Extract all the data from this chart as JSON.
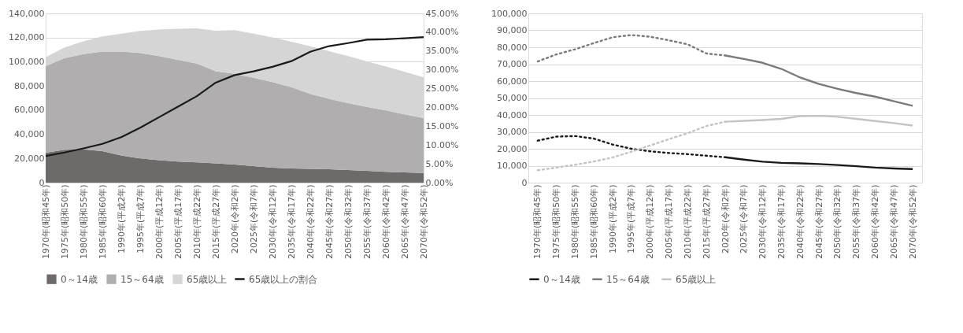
{
  "chart_data": [
    {
      "type": "area",
      "stacked": true,
      "categories": [
        "1970年(昭和45年)",
        "1975年(昭和50年)",
        "1980年(昭和55年)",
        "1985年(昭和60年)",
        "1990年(平成2年)",
        "1995年(平成7年)",
        "2000年(平成12年)",
        "2005年(平成17年)",
        "2010年(平成22年)",
        "2015年(平成27年)",
        "2020年(令和2年)",
        "2025年(令和7年)",
        "2030年(令和12年)",
        "2035年(令和17年)",
        "2040年(令和22年)",
        "2045年(令和27年)",
        "2050年(令和32年)",
        "2055年(令和37年)",
        "2060年(令和42年)",
        "2065年(令和47年)",
        "2070年(令和52年)"
      ],
      "series": [
        {
          "name": "0～14歳",
          "type": "area",
          "color": "#6f6a6a",
          "values": [
            24800,
            27200,
            27500,
            26000,
            22500,
            20000,
            18500,
            17500,
            16800,
            15900,
            15000,
            13600,
            12400,
            11700,
            11400,
            11000,
            10400,
            9700,
            8900,
            8400,
            8000
          ]
        },
        {
          "name": "15～64歳",
          "type": "area",
          "color": "#b0aeae",
          "values": [
            71600,
            75800,
            78800,
            82500,
            85900,
            87200,
            86200,
            84100,
            81700,
            76300,
            75100,
            73100,
            70800,
            67200,
            62100,
            58300,
            55400,
            52900,
            50800,
            48100,
            45400
          ]
        },
        {
          "name": "65歳以上",
          "type": "area",
          "color": "#d6d5d5",
          "values": [
            7300,
            8900,
            10600,
            12500,
            14900,
            18300,
            22000,
            25700,
            29200,
            33500,
            36000,
            36500,
            37000,
            37700,
            39300,
            39500,
            38900,
            37700,
            36400,
            35200,
            33700
          ]
        },
        {
          "name": "65歳以上の割合",
          "type": "line",
          "axis": "y2",
          "color": "#1a1a1a",
          "values": [
            7.1,
            8.0,
            9.1,
            10.3,
            12.1,
            14.6,
            17.4,
            20.2,
            23.0,
            26.6,
            28.6,
            29.6,
            30.8,
            32.3,
            34.8,
            36.3,
            37.1,
            38.0,
            38.1,
            38.4,
            38.7
          ]
        }
      ],
      "ylim": [
        0,
        140000
      ],
      "yticks": [
        0,
        {
          "value": 20000,
          "label": "20,000"
        },
        {
          "value": 40000,
          "label": "40,000"
        },
        {
          "value": 60000,
          "label": "60,000"
        },
        {
          "value": 80000,
          "label": "80,000"
        },
        {
          "value": 100000,
          "label": "100,000"
        },
        {
          "value": 120000,
          "label": "120,000"
        },
        {
          "value": 140000,
          "label": "140,000"
        }
      ],
      "y2lim": [
        0,
        45
      ],
      "y2ticks": [
        {
          "value": 0,
          "label": "0.00%"
        },
        {
          "value": 5,
          "label": "5.00%"
        },
        {
          "value": 10,
          "label": "10.00%"
        },
        {
          "value": 15,
          "label": "15.00%"
        },
        {
          "value": 20,
          "label": "20.00%"
        },
        {
          "value": 25,
          "label": "25.00%"
        },
        {
          "value": 30,
          "label": "30.00%"
        },
        {
          "value": 35,
          "label": "35.00%"
        },
        {
          "value": 40,
          "label": "40.00%"
        },
        {
          "value": 45,
          "label": "45.00%"
        }
      ],
      "grid": "y",
      "legend": "bottom"
    },
    {
      "type": "line",
      "categories": [
        "1970年(昭和45年)",
        "1975年(昭和50年)",
        "1980年(昭和55年)",
        "1985年(昭和60年)",
        "1990年(平成2年)",
        "1995年(平成7年)",
        "2000年(平成12年)",
        "2005年(平成17年)",
        "2010年(平成22年)",
        "2015年(平成27年)",
        "2020年(令和2年)",
        "2025年(令和7年)",
        "2030年(令和12年)",
        "2035年(令和17年)",
        "2040年(令和22年)",
        "2045年(令和27年)",
        "2050年(令和32年)",
        "2055年(令和37年)",
        "2060年(令和42年)",
        "2065年(令和47年)",
        "2070年(令和52年)"
      ],
      "series": [
        {
          "color": "#1a1a1a",
          "line_style": "dotted",
          "values": [
            24800,
            27200,
            27500,
            26000,
            22500,
            20000,
            18500,
            17500,
            16800,
            15900,
            15000,
            null,
            null,
            null,
            null,
            null,
            null,
            null,
            null,
            null,
            null
          ]
        },
        {
          "color": "#7a7a7a",
          "line_style": "dotted",
          "values": [
            71600,
            75800,
            78800,
            82500,
            85900,
            87200,
            86200,
            84100,
            81700,
            76300,
            75100,
            null,
            null,
            null,
            null,
            null,
            null,
            null,
            null,
            null,
            null
          ]
        },
        {
          "color": "#c4c4c4",
          "line_style": "dotted",
          "values": [
            7300,
            8900,
            10600,
            12500,
            14900,
            18300,
            22000,
            25700,
            29200,
            33500,
            36000,
            null,
            null,
            null,
            null,
            null,
            null,
            null,
            null,
            null,
            null
          ]
        },
        {
          "name": "0～14歳",
          "color": "#1a1a1a",
          "line_style": "solid",
          "values": [
            null,
            null,
            null,
            null,
            null,
            null,
            null,
            null,
            null,
            null,
            15000,
            13600,
            12400,
            11700,
            11400,
            11000,
            10400,
            9700,
            8900,
            8400,
            8000
          ]
        },
        {
          "name": "15～64歳",
          "color": "#7a7a7a",
          "line_style": "solid",
          "values": [
            null,
            null,
            null,
            null,
            null,
            null,
            null,
            null,
            null,
            null,
            75100,
            73100,
            70800,
            67200,
            62100,
            58300,
            55400,
            52900,
            50800,
            48100,
            45400
          ]
        },
        {
          "name": "65歳以上",
          "color": "#c4c4c4",
          "line_style": "solid",
          "values": [
            null,
            null,
            null,
            null,
            null,
            null,
            null,
            null,
            null,
            null,
            36000,
            36500,
            37000,
            37700,
            39300,
            39500,
            38900,
            37700,
            36400,
            35200,
            33700
          ]
        }
      ],
      "ylim": [
        0,
        100000
      ],
      "yticks": [
        0,
        {
          "value": 10000,
          "label": "10,000"
        },
        {
          "value": 20000,
          "label": "20,000"
        },
        {
          "value": 30000,
          "label": "30,000"
        },
        {
          "value": 40000,
          "label": "40,000"
        },
        {
          "value": 50000,
          "label": "50,000"
        },
        {
          "value": 60000,
          "label": "60,000"
        },
        {
          "value": 70000,
          "label": "70,000"
        },
        {
          "value": 80000,
          "label": "80,000"
        },
        {
          "value": 90000,
          "label": "90,000"
        },
        {
          "value": 100000,
          "label": "100,000"
        }
      ],
      "grid": "y",
      "legend": "bottom"
    }
  ]
}
